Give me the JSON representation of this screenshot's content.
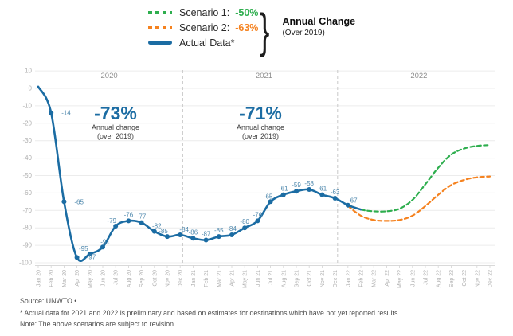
{
  "colors": {
    "actual_blue": "#1b6ca3",
    "scenario1_green": "#2eae4e",
    "scenario2_orange": "#f5821f",
    "point_label_blue": "#4d87ac",
    "grid": "#ececec",
    "axis_text": "#b0b0b0",
    "separator": "#c9c9c9",
    "year_text": "#8f8f8f"
  },
  "legend": {
    "items": [
      {
        "label": "Scenario 1:",
        "value": "-50%"
      },
      {
        "label": "Scenario 2:",
        "value": "-63%"
      },
      {
        "label": "Actual Data*",
        "value": ""
      }
    ],
    "annual_change_title": "Annual Change",
    "annual_change_sub": "(Over 2019)"
  },
  "annotations": {
    "y2020": {
      "pct": "-73%",
      "line1": "Annual change",
      "line2": "(over 2019)"
    },
    "y2021": {
      "pct": "-71%",
      "line1": "Annual change",
      "line2": "(over 2019)"
    }
  },
  "footer": {
    "source": "Source: UNWTO •",
    "note1": "* Actual data for 2021 and 2022 is preliminary and based on estimates for destinations which have not yet reported results.",
    "note2": "Note: The above scenarios are subject to revision."
  },
  "chart_data": {
    "type": "line",
    "title": "",
    "xlabel": "",
    "ylabel": "",
    "ylim": [
      -100,
      10
    ],
    "grid": true,
    "legend_position": "top",
    "yticks": [
      10,
      0,
      -10,
      -20,
      -30,
      -40,
      -50,
      -60,
      -70,
      -80,
      -90,
      -100
    ],
    "x": [
      "Jan 20",
      "Feb 20",
      "Mar 20",
      "Apr 20",
      "May 20",
      "Jun 20",
      "Jul 20",
      "Aug 20",
      "Sep 20",
      "Oct 20",
      "Nov 20",
      "Dec 20",
      "Jan 21",
      "Feb 21",
      "Mar 21",
      "Apr 21",
      "May 21",
      "Jun 21",
      "Jul 21",
      "Aug 21",
      "Sep 21",
      "Oct 21",
      "Nov 21",
      "Dec 21",
      "Jan 22",
      "Feb 22",
      "Mar 22",
      "Apr 22",
      "May 22",
      "Jun 22",
      "Jul 22",
      "Aug 22",
      "Sep 22",
      "Oct 22",
      "Nov 22",
      "Dec 22"
    ],
    "year_labels": [
      {
        "label": "2020",
        "center": 5.5
      },
      {
        "label": "2021",
        "center": 17.5
      },
      {
        "label": "2022",
        "center": 29.5
      }
    ],
    "year_separators": [
      11.2,
      23.2
    ],
    "series": [
      {
        "name": "Actual Data*",
        "color": "#1b6ca3",
        "dash": false,
        "values": [
          1,
          -14,
          -65,
          -97,
          -95,
          -91,
          -79,
          -76,
          -77,
          -82,
          -85,
          -84,
          -86,
          -87,
          -85,
          -84,
          -80,
          -76,
          -65,
          -61,
          -59,
          -58,
          -61,
          -63,
          -67,
          -69.5,
          null,
          null,
          null,
          null,
          null,
          null,
          null,
          null,
          null,
          null
        ],
        "labels": [
          null,
          "-14",
          "-65",
          "-97",
          "-95",
          "-91",
          "-79",
          "-76",
          "-77",
          "-82",
          "-85",
          "-84",
          "-86",
          "-87",
          "-85",
          "-84",
          "-80",
          "-76",
          "-65",
          "-61",
          "-59",
          "-58",
          "-61",
          "-63",
          "-67",
          null,
          null,
          null,
          null,
          null,
          null,
          null,
          null,
          null,
          null,
          null
        ],
        "label_offsets": {
          "1": [
            13,
            3
          ],
          "2": [
            13,
            3
          ],
          "3": [
            12,
            2
          ],
          "4": [
            -8,
            -4
          ],
          "5": [
            3,
            -4
          ],
          "6": [
            -5,
            -4
          ],
          "9": [
            3,
            -4
          ],
          "10": [
            -5,
            -4
          ],
          "11": [
            5,
            -4
          ],
          "18": [
            -3,
            -4
          ],
          "24": [
            6,
            -3
          ]
        }
      },
      {
        "name": "Scenario 1",
        "color": "#2eae4e",
        "dash": true,
        "values": [
          null,
          null,
          null,
          null,
          null,
          null,
          null,
          null,
          null,
          null,
          null,
          null,
          null,
          null,
          null,
          null,
          null,
          null,
          null,
          null,
          null,
          null,
          null,
          null,
          -67,
          -69.5,
          -70.5,
          -70.5,
          -69,
          -64,
          -55,
          -45.5,
          -38,
          -34.5,
          -33,
          -32.5
        ],
        "labels": []
      },
      {
        "name": "Scenario 2",
        "color": "#f5821f",
        "dash": true,
        "values": [
          null,
          null,
          null,
          null,
          null,
          null,
          null,
          null,
          null,
          null,
          null,
          null,
          null,
          null,
          null,
          null,
          null,
          null,
          null,
          null,
          null,
          null,
          null,
          null,
          -67.5,
          -73,
          -75.5,
          -76,
          -75.5,
          -73,
          -67.5,
          -61,
          -55.5,
          -52.5,
          -51,
          -50.5
        ],
        "labels": []
      }
    ]
  }
}
